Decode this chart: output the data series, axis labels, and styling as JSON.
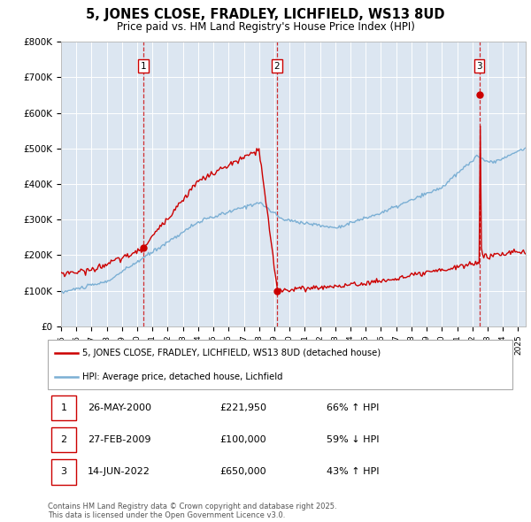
{
  "title": "5, JONES CLOSE, FRADLEY, LICHFIELD, WS13 8UD",
  "subtitle": "Price paid vs. HM Land Registry's House Price Index (HPI)",
  "background_color": "#ffffff",
  "plot_bg_color": "#dce6f1",
  "grid_color": "#ffffff",
  "hpi_color": "#7bafd4",
  "price_color": "#cc0000",
  "ylim": [
    0,
    800000
  ],
  "yticks": [
    0,
    100000,
    200000,
    300000,
    400000,
    500000,
    600000,
    700000,
    800000
  ],
  "ytick_labels": [
    "£0",
    "£100K",
    "£200K",
    "£300K",
    "£400K",
    "£500K",
    "£600K",
    "£700K",
    "£800K"
  ],
  "sale_dates": [
    2000.41,
    2009.16,
    2022.45
  ],
  "sale_prices": [
    221950,
    100000,
    650000
  ],
  "sale_labels": [
    "1",
    "2",
    "3"
  ],
  "annotation1_date": "26-MAY-2000",
  "annotation1_price": "£221,950",
  "annotation1_pct": "66% ↑ HPI",
  "annotation2_date": "27-FEB-2009",
  "annotation2_price": "£100,000",
  "annotation2_pct": "59% ↓ HPI",
  "annotation3_date": "14-JUN-2022",
  "annotation3_price": "£650,000",
  "annotation3_pct": "43% ↑ HPI",
  "legend_label1": "5, JONES CLOSE, FRADLEY, LICHFIELD, WS13 8UD (detached house)",
  "legend_label2": "HPI: Average price, detached house, Lichfield",
  "footer": "Contains HM Land Registry data © Crown copyright and database right 2025.\nThis data is licensed under the Open Government Licence v3.0."
}
